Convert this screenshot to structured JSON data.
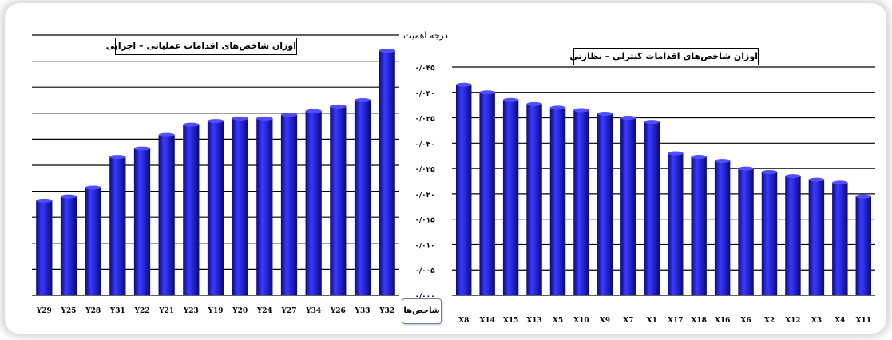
{
  "colors": {
    "bar": "#1c1cc8",
    "bar_light": "#4a4aff",
    "bar_dark": "#0a0a7a",
    "grid": "#000000"
  },
  "shared_axis": {
    "ylabel": "درجه اهمیت",
    "xlabel": "شاخص‌ها",
    "ytick_labels": [
      "۰/۰۰۰",
      "۰/۰۰۵",
      "۰/۰۱۰",
      "۰/۰۱۵",
      "۰/۰۲۰",
      "۰/۰۲۵",
      "۰/۰۳۰",
      "۰/۰۳۵",
      "۰/۰۴۰",
      "۰/۰۴۵"
    ]
  },
  "chart_data": [
    {
      "type": "bar",
      "title": "اوزان شاخص‌های اقدامات عملیاتی – اجرایی",
      "categories": [
        "Y29",
        "Y25",
        "Y28",
        "Y31",
        "Y22",
        "Y21",
        "Y23",
        "Y19",
        "Y20",
        "Y24",
        "Y27",
        "Y34",
        "Y26",
        "Y33",
        "Y32"
      ],
      "values": [
        0.0182,
        0.019,
        0.0207,
        0.0266,
        0.0282,
        0.0308,
        0.0328,
        0.0335,
        0.034,
        0.034,
        0.0347,
        0.0354,
        0.0363,
        0.0375,
        0.047
      ],
      "ylim": [
        0,
        0.05
      ],
      "grid": true
    },
    {
      "type": "bar",
      "title": "اوزان شاخص‌های اقدامات کنترلی – نظارتی",
      "categories": [
        "X8",
        "X14",
        "X15",
        "X13",
        "X5",
        "X10",
        "X9",
        "X7",
        "X1",
        "X17",
        "X18",
        "X16",
        "X6",
        "X2",
        "X12",
        "X3",
        "X4",
        "X11"
      ],
      "values": [
        0.0415,
        0.04,
        0.0385,
        0.0377,
        0.037,
        0.0365,
        0.0358,
        0.035,
        0.0342,
        0.028,
        0.0273,
        0.0265,
        0.025,
        0.0243,
        0.0235,
        0.0228,
        0.0222,
        0.0195
      ],
      "ylim": [
        0,
        0.045
      ],
      "grid": true
    }
  ]
}
